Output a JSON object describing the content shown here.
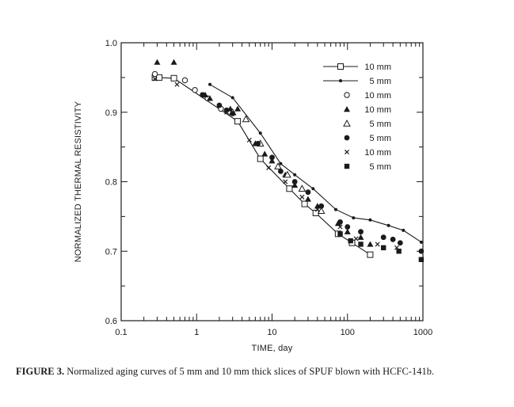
{
  "chart_data": {
    "type": "scatter",
    "title": "",
    "xlabel": "TIME, day",
    "ylabel": "NORMALIZED THERMAL RESISTIVITY",
    "xscale": "log",
    "xlim": [
      0.1,
      1000
    ],
    "ylim": [
      0.6,
      1.0
    ],
    "xticks": [
      0.1,
      1,
      10,
      100,
      1000
    ],
    "xtick_labels": [
      "0.1",
      "1",
      "10",
      "100",
      "1000"
    ],
    "yticks": [
      0.6,
      0.7,
      0.8,
      0.9,
      1.0
    ],
    "ytick_labels": [
      "0.6",
      "0.7",
      "0.8",
      "0.9",
      "1.0"
    ],
    "legend_position": "top-right",
    "series": [
      {
        "name": "10 mm",
        "marker": "open-square",
        "line": true,
        "x": [
          0.28,
          0.32,
          0.5,
          3.5,
          7,
          17,
          27,
          38,
          75,
          115,
          200
        ],
        "y": [
          0.95,
          0.95,
          0.949,
          0.887,
          0.833,
          0.79,
          0.768,
          0.755,
          0.725,
          0.712,
          0.695
        ]
      },
      {
        "name": "5 mm",
        "marker": "small-dot",
        "line": true,
        "x": [
          1.5,
          3,
          7,
          13,
          20,
          35,
          70,
          120,
          200,
          350,
          550,
          950
        ],
        "y": [
          0.94,
          0.921,
          0.87,
          0.826,
          0.81,
          0.79,
          0.76,
          0.748,
          0.745,
          0.737,
          0.73,
          0.713
        ]
      },
      {
        "name": "10 mm",
        "marker": "open-circle",
        "line": false,
        "x": [
          0.28,
          0.7,
          0.95,
          1.4,
          2.1
        ],
        "y": [
          0.955,
          0.946,
          0.932,
          0.92,
          0.905
        ]
      },
      {
        "name": "10 mm",
        "marker": "filled-triangle",
        "line": false,
        "x": [
          0.3,
          0.5,
          1.3,
          1.5,
          2.8,
          3.5,
          6,
          8,
          10,
          15,
          20,
          30,
          40,
          75,
          100,
          150,
          200
        ],
        "y": [
          0.972,
          0.972,
          0.925,
          0.92,
          0.905,
          0.905,
          0.855,
          0.84,
          0.83,
          0.81,
          0.795,
          0.775,
          0.765,
          0.74,
          0.728,
          0.72,
          0.71
        ]
      },
      {
        "name": "5 mm",
        "marker": "open-triangle",
        "line": false,
        "x": [
          3,
          4.5,
          7,
          12,
          16,
          25,
          45
        ],
        "y": [
          0.9,
          0.89,
          0.855,
          0.822,
          0.81,
          0.79,
          0.758
        ]
      },
      {
        "name": "5 mm",
        "marker": "filled-circle",
        "line": false,
        "x": [
          1.2,
          2,
          2.5,
          3,
          6.5,
          10,
          13,
          20,
          30,
          45,
          80,
          100,
          150,
          300,
          400,
          500,
          950
        ],
        "y": [
          0.925,
          0.91,
          0.903,
          0.898,
          0.855,
          0.835,
          0.815,
          0.8,
          0.785,
          0.765,
          0.742,
          0.735,
          0.728,
          0.72,
          0.717,
          0.712,
          0.7
        ]
      },
      {
        "name": "10 mm",
        "marker": "cross",
        "line": false,
        "x": [
          0.28,
          0.55,
          1.2,
          2.5,
          5,
          9,
          15,
          25,
          40,
          80,
          130,
          250,
          450
        ],
        "y": [
          0.948,
          0.94,
          0.925,
          0.9,
          0.86,
          0.82,
          0.8,
          0.778,
          0.76,
          0.735,
          0.718,
          0.71,
          0.705
        ]
      },
      {
        "name": "5 mm",
        "marker": "filled-square",
        "line": false,
        "x": [
          80,
          110,
          150,
          300,
          480,
          950
        ],
        "y": [
          0.725,
          0.715,
          0.71,
          0.705,
          0.7,
          0.688
        ]
      }
    ]
  },
  "caption": {
    "label": "FIGURE 3.",
    "text": "Normalized aging curves of 5 mm and 10 mm thick slices of SPUF blown with HCFC-141b."
  },
  "colors": {
    "ink": "#1a1a1a",
    "background": "#ffffff"
  }
}
